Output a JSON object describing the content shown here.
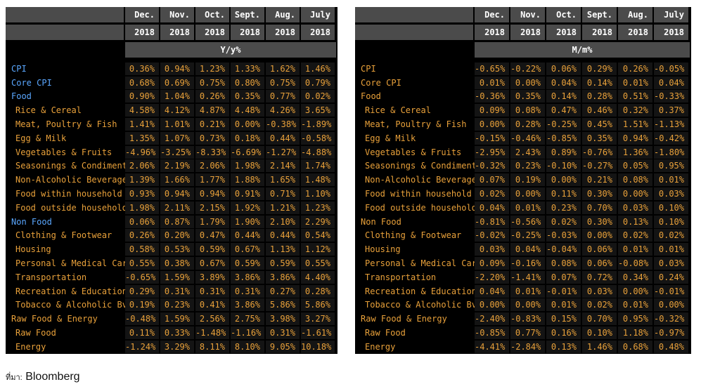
{
  "left": {
    "months": [
      "Dec.",
      "Nov.",
      "Oct.",
      "Sept.",
      "Aug.",
      "July"
    ],
    "years": [
      "2018",
      "2018",
      "2018",
      "2018",
      "2018",
      "2018"
    ],
    "unit": "Y/y%",
    "rows": [
      {
        "name": "CPI",
        "style": "top blue",
        "values": [
          "0.36%",
          "0.94%",
          "1.23%",
          "1.33%",
          "1.62%",
          "1.46%"
        ]
      },
      {
        "name": "Core CPI",
        "style": "top blue",
        "values": [
          "0.68%",
          "0.69%",
          "0.75%",
          "0.80%",
          "0.75%",
          "0.79%"
        ]
      },
      {
        "name": "Food",
        "style": "top blue",
        "values": [
          "0.90%",
          "1.04%",
          "0.26%",
          "0.35%",
          "0.77%",
          "0.02%"
        ]
      },
      {
        "name": "Rice & Cereal",
        "style": "",
        "values": [
          "4.58%",
          "4.12%",
          "4.87%",
          "4.48%",
          "4.26%",
          "3.65%"
        ]
      },
      {
        "name": "Meat, Poultry & Fish",
        "style": "",
        "values": [
          "1.41%",
          "1.01%",
          "0.21%",
          "0.00%",
          "-0.38%",
          "-1.89%"
        ]
      },
      {
        "name": "Egg & Milk",
        "style": "",
        "values": [
          "1.35%",
          "1.07%",
          "0.73%",
          "0.18%",
          "0.44%",
          "-0.58%"
        ]
      },
      {
        "name": "Vegetables & Fruits",
        "style": "",
        "values": [
          "-4.96%",
          "-3.25%",
          "-8.33%",
          "-6.69%",
          "-1.27%",
          "-4.88%"
        ]
      },
      {
        "name": "Seasonings & Condiments",
        "style": "",
        "values": [
          "2.06%",
          "2.19%",
          "2.06%",
          "1.98%",
          "2.14%",
          "1.74%"
        ]
      },
      {
        "name": "Non-Alcoholic Beverage",
        "style": "",
        "values": [
          "1.39%",
          "1.66%",
          "1.77%",
          "1.88%",
          "1.65%",
          "1.48%"
        ]
      },
      {
        "name": "Food within household",
        "style": "",
        "values": [
          "0.93%",
          "0.94%",
          "0.94%",
          "0.91%",
          "0.71%",
          "1.10%"
        ]
      },
      {
        "name": "Food outside household",
        "style": "",
        "values": [
          "1.98%",
          "2.11%",
          "2.15%",
          "1.92%",
          "1.21%",
          "1.23%"
        ]
      },
      {
        "name": "Non Food",
        "style": "top blue",
        "values": [
          "0.06%",
          "0.87%",
          "1.79%",
          "1.90%",
          "2.10%",
          "2.29%"
        ]
      },
      {
        "name": "Clothing & Footwear",
        "style": "",
        "values": [
          "0.26%",
          "0.20%",
          "0.47%",
          "0.44%",
          "0.44%",
          "0.54%"
        ]
      },
      {
        "name": "Housing",
        "style": "",
        "values": [
          "0.58%",
          "0.53%",
          "0.59%",
          "0.67%",
          "1.13%",
          "1.12%"
        ]
      },
      {
        "name": "Personal & Medical Care",
        "style": "",
        "values": [
          "0.55%",
          "0.38%",
          "0.67%",
          "0.59%",
          "0.59%",
          "0.55%"
        ]
      },
      {
        "name": "Transportation",
        "style": "",
        "values": [
          "-0.65%",
          "1.59%",
          "3.89%",
          "3.86%",
          "3.86%",
          "4.40%"
        ]
      },
      {
        "name": "Recreation & Education",
        "style": "",
        "values": [
          "0.29%",
          "0.31%",
          "0.31%",
          "0.31%",
          "0.27%",
          "0.28%"
        ]
      },
      {
        "name": "Tobacco & Alcoholic Bvg",
        "style": "",
        "values": [
          "0.19%",
          "0.23%",
          "0.41%",
          "3.86%",
          "5.86%",
          "5.86%"
        ]
      },
      {
        "name": "Raw Food & Energy",
        "style": "top",
        "values": [
          "-0.48%",
          "1.59%",
          "2.56%",
          "2.75%",
          "3.98%",
          "3.27%"
        ]
      },
      {
        "name": "Raw Food",
        "style": "",
        "values": [
          "0.11%",
          "0.33%",
          "-1.48%",
          "-1.16%",
          "0.31%",
          "-1.61%"
        ]
      },
      {
        "name": "Energy",
        "style": "",
        "values": [
          "-1.24%",
          "3.29%",
          "8.11%",
          "8.10%",
          "9.05%",
          "10.18%"
        ]
      }
    ]
  },
  "right": {
    "months": [
      "Dec.",
      "Nov.",
      "Oct.",
      "Sept.",
      "Aug.",
      "July"
    ],
    "years": [
      "2018",
      "2018",
      "2018",
      "2018",
      "2018",
      "2018"
    ],
    "unit": "M/m%",
    "rows": [
      {
        "name": "CPI",
        "style": "top",
        "values": [
          "-0.65%",
          "-0.22%",
          "0.06%",
          "0.29%",
          "0.26%",
          "-0.05%"
        ]
      },
      {
        "name": "Core CPI",
        "style": "top",
        "values": [
          "0.01%",
          "0.00%",
          "0.04%",
          "0.14%",
          "0.01%",
          "0.04%"
        ]
      },
      {
        "name": "Food",
        "style": "top",
        "values": [
          "-0.36%",
          "0.35%",
          "0.14%",
          "0.28%",
          "0.51%",
          "-0.33%"
        ]
      },
      {
        "name": "Rice & Cereal",
        "style": "",
        "values": [
          "0.09%",
          "0.08%",
          "0.47%",
          "0.46%",
          "0.32%",
          "0.37%"
        ]
      },
      {
        "name": "Meat, Poultry & Fish",
        "style": "",
        "values": [
          "0.00%",
          "0.28%",
          "-0.25%",
          "0.45%",
          "1.51%",
          "-1.13%"
        ]
      },
      {
        "name": "Egg & Milk",
        "style": "",
        "values": [
          "-0.15%",
          "-0.46%",
          "-0.85%",
          "0.35%",
          "0.94%",
          "-0.42%"
        ]
      },
      {
        "name": "Vegetables & Fruits",
        "style": "",
        "values": [
          "-2.95%",
          "2.43%",
          "0.89%",
          "-0.76%",
          "1.36%",
          "-1.80%"
        ]
      },
      {
        "name": "Seasonings & Condiments",
        "style": "",
        "values": [
          "-0.32%",
          "0.23%",
          "-0.10%",
          "-0.27%",
          "0.05%",
          "0.95%"
        ]
      },
      {
        "name": "Non-Alcoholic Beverage",
        "style": "",
        "values": [
          "0.07%",
          "0.19%",
          "0.00%",
          "0.21%",
          "0.08%",
          "0.01%"
        ]
      },
      {
        "name": "Food within household",
        "style": "",
        "values": [
          "0.02%",
          "0.00%",
          "0.11%",
          "0.30%",
          "0.00%",
          "0.03%"
        ]
      },
      {
        "name": "Food outside household",
        "style": "",
        "values": [
          "0.04%",
          "0.01%",
          "0.23%",
          "0.70%",
          "0.03%",
          "0.10%"
        ]
      },
      {
        "name": "Non Food",
        "style": "top",
        "values": [
          "-0.81%",
          "-0.56%",
          "0.02%",
          "0.30%",
          "0.13%",
          "0.10%"
        ]
      },
      {
        "name": "Clothing & Footwear",
        "style": "",
        "values": [
          "-0.02%",
          "-0.25%",
          "-0.03%",
          "0.00%",
          "0.02%",
          "0.02%"
        ]
      },
      {
        "name": "Housing",
        "style": "",
        "values": [
          "0.03%",
          "0.04%",
          "-0.04%",
          "0.06%",
          "0.01%",
          "0.01%"
        ]
      },
      {
        "name": "Personal & Medical Care",
        "style": "",
        "values": [
          "0.09%",
          "-0.16%",
          "0.08%",
          "0.06%",
          "-0.08%",
          "0.03%"
        ]
      },
      {
        "name": "Transportation",
        "style": "",
        "values": [
          "-2.20%",
          "-1.41%",
          "0.07%",
          "0.72%",
          "0.34%",
          "0.24%"
        ]
      },
      {
        "name": "Recreation & Education",
        "style": "",
        "values": [
          "0.04%",
          "0.01%",
          "-0.01%",
          "0.03%",
          "0.00%",
          "-0.01%"
        ]
      },
      {
        "name": "Tobacco & Alcoholic Bvg",
        "style": "",
        "values": [
          "0.00%",
          "0.00%",
          "0.01%",
          "0.02%",
          "0.01%",
          "0.00%"
        ]
      },
      {
        "name": "Raw Food & Energy",
        "style": "top",
        "values": [
          "-2.40%",
          "-0.83%",
          "0.15%",
          "0.70%",
          "0.95%",
          "-0.32%"
        ]
      },
      {
        "name": "Raw Food",
        "style": "",
        "values": [
          "-0.85%",
          "0.77%",
          "0.16%",
          "0.10%",
          "1.18%",
          "-0.97%"
        ]
      },
      {
        "name": "Energy",
        "style": "",
        "values": [
          "-4.41%",
          "-2.84%",
          "0.13%",
          "1.46%",
          "0.68%",
          "0.48%"
        ]
      }
    ]
  },
  "source": {
    "prefix": "ที่มา:",
    "name": "Bloomberg"
  },
  "colors": {
    "orange": "#e9a13a",
    "blue": "#5aa7ff",
    "header_bg": "#4b4b4b",
    "panel_bg": "#000000"
  }
}
